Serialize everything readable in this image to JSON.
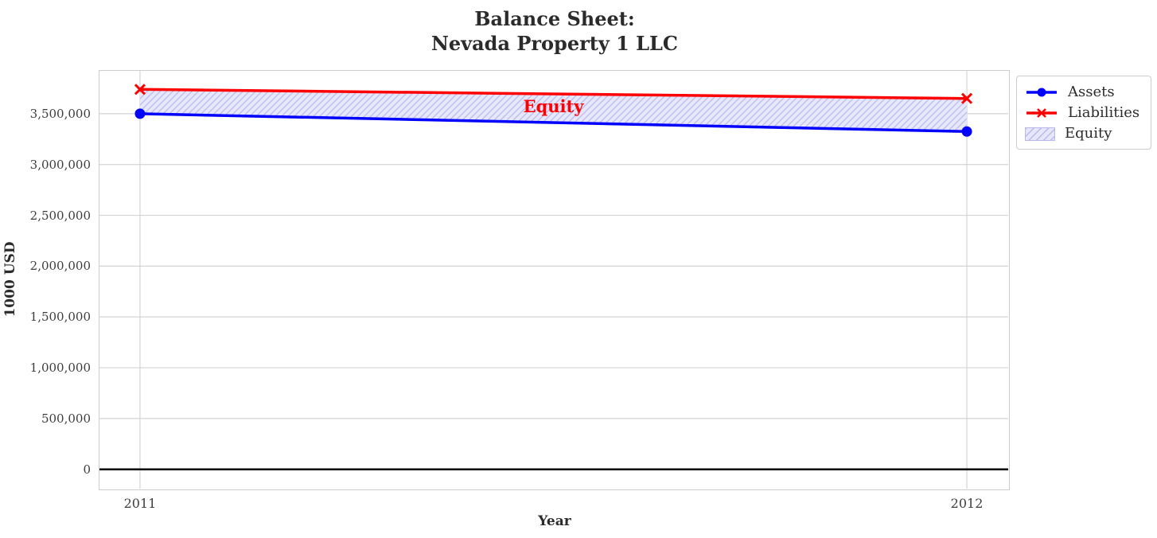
{
  "title": {
    "line1": "Balance Sheet:",
    "line2": "Nevada Property 1 LLC"
  },
  "chart_data": {
    "type": "line",
    "title": "Balance Sheet: Nevada Property 1 LLC",
    "xlabel": "Year",
    "ylabel": "1000 USD",
    "x": [
      2011,
      2012
    ],
    "series": [
      {
        "name": "Assets",
        "values": [
          3500000,
          3325000
        ],
        "color": "#0000ff",
        "marker": "circle"
      },
      {
        "name": "Liabilities",
        "values": [
          3740000,
          3650000
        ],
        "color": "#ff0000",
        "marker": "x"
      }
    ],
    "band": {
      "name": "Equity",
      "between": [
        "Assets",
        "Liabilities"
      ],
      "values_equity": [
        240000,
        325000
      ],
      "fill_color": "#e7e7fb",
      "hatch_color": "#b9b9ee",
      "hatch": "//"
    },
    "annotation": {
      "text": "Equity",
      "x": 2011.5,
      "y": 3570000,
      "color": "#ff0000"
    },
    "xlim": [
      2010.95,
      2012.05
    ],
    "ylim": [
      -190000,
      3930000
    ],
    "xticks": {
      "values": [
        2011,
        2012
      ],
      "labels": [
        "2011",
        "2012"
      ]
    },
    "yticks": {
      "values": [
        0,
        500000,
        1000000,
        1500000,
        2000000,
        2500000,
        3000000,
        3500000
      ],
      "labels": [
        "0",
        "500,000",
        "1,000,000",
        "1,500,000",
        "2,000,000",
        "2,500,000",
        "3,000,000",
        "3,500,000"
      ]
    },
    "zero_line": {
      "value": 0,
      "color": "#000000",
      "width": 2.5
    },
    "grid": true,
    "legend": {
      "position": "outside-upper-right",
      "entries": [
        "Assets",
        "Liabilities",
        "Equity"
      ]
    },
    "style": {
      "grid_color": "#d4d4d4",
      "spine_color": "#cccccc",
      "title_color": "#2b2b2b",
      "tick_color": "#3d3d3d",
      "background": "#ffffff"
    }
  }
}
